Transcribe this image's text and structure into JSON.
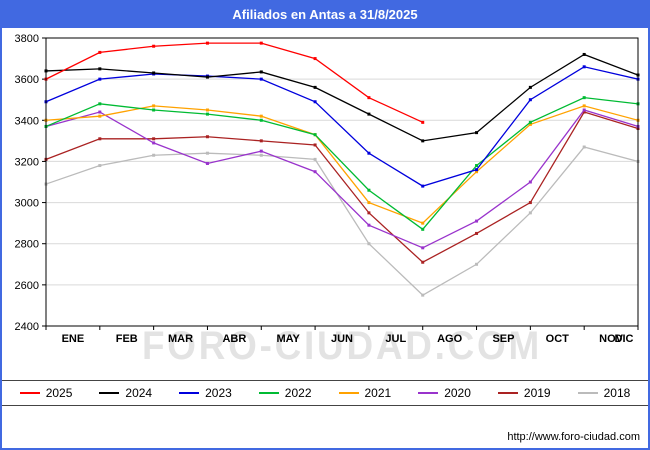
{
  "watermark": "FORO-CIUDAD.COM",
  "footer": {
    "url": "http://www.foro-ciudad.com"
  },
  "colors": {
    "frame_border": "#4169e1",
    "titlebar": "#4169e1",
    "grid": "#d9d9d9",
    "axis": "#000000",
    "watermark": "#cccccc"
  },
  "chart_data": {
    "type": "line",
    "title": "Afiliados en Antas a 31/8/2025",
    "xlabel": "",
    "ylabel": "",
    "categories": [
      "ENE",
      "FEB",
      "MAR",
      "ABR",
      "MAY",
      "JUN",
      "JUL",
      "AGO",
      "SEP",
      "OCT",
      "NOV",
      "DIC"
    ],
    "ylim": [
      2400,
      3800
    ],
    "ytick_step": 200,
    "grid": true,
    "legend_position": "bottom",
    "series": [
      {
        "name": "2025",
        "color": "#ff0000",
        "values": [
          3600,
          3730,
          3760,
          3775,
          3775,
          3700,
          3510,
          3390
        ]
      },
      {
        "name": "2024",
        "color": "#000000",
        "values": [
          3640,
          3650,
          3630,
          3610,
          3635,
          3560,
          3430,
          3300,
          3340,
          3560,
          3720,
          3620
        ]
      },
      {
        "name": "2023",
        "color": "#0000dd",
        "values": [
          3490,
          3600,
          3625,
          3615,
          3600,
          3490,
          3240,
          3080,
          3160,
          3500,
          3660,
          3600
        ]
      },
      {
        "name": "2022",
        "color": "#00bb33",
        "values": [
          3370,
          3480,
          3450,
          3430,
          3400,
          3330,
          3060,
          2870,
          3180,
          3390,
          3510,
          3480
        ]
      },
      {
        "name": "2021",
        "color": "#ffa200",
        "values": [
          3400,
          3420,
          3470,
          3450,
          3420,
          3330,
          3000,
          2900,
          3150,
          3380,
          3470,
          3400
        ]
      },
      {
        "name": "2020",
        "color": "#9933cc",
        "values": [
          3370,
          3440,
          3290,
          3190,
          3250,
          3150,
          2890,
          2780,
          2910,
          3100,
          3450,
          3370
        ]
      },
      {
        "name": "2019",
        "color": "#aa2222",
        "values": [
          3210,
          3310,
          3310,
          3320,
          3300,
          3280,
          2950,
          2710,
          2850,
          3000,
          3440,
          3360
        ]
      },
      {
        "name": "2018",
        "color": "#bbbbbb",
        "values": [
          3090,
          3180,
          3230,
          3240,
          3230,
          3210,
          2800,
          2550,
          2700,
          2950,
          3270,
          3200
        ]
      }
    ]
  }
}
